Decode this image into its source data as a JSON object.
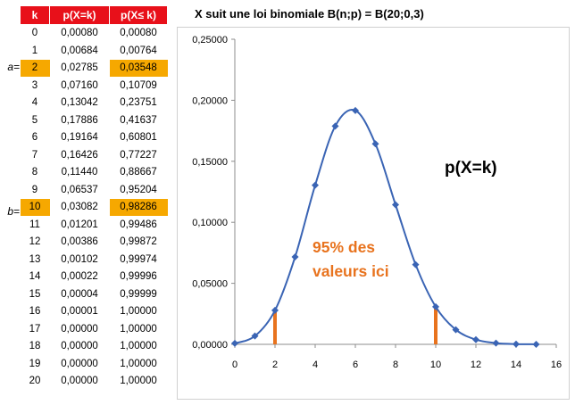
{
  "table": {
    "headers": [
      "k",
      "p(X=k)",
      "p(X≤ k)"
    ],
    "rows": [
      [
        "0",
        "0,00080",
        "0,00080"
      ],
      [
        "1",
        "0,00684",
        "0,00764"
      ],
      [
        "2",
        "0,02785",
        "0,03548"
      ],
      [
        "3",
        "0,07160",
        "0,10709"
      ],
      [
        "4",
        "0,13042",
        "0,23751"
      ],
      [
        "5",
        "0,17886",
        "0,41637"
      ],
      [
        "6",
        "0,19164",
        "0,60801"
      ],
      [
        "7",
        "0,16426",
        "0,77227"
      ],
      [
        "8",
        "0,11440",
        "0,88667"
      ],
      [
        "9",
        "0,06537",
        "0,95204"
      ],
      [
        "10",
        "0,03082",
        "0,98286"
      ],
      [
        "11",
        "0,01201",
        "0,99486"
      ],
      [
        "12",
        "0,00386",
        "0,99872"
      ],
      [
        "13",
        "0,00102",
        "0,99974"
      ],
      [
        "14",
        "0,00022",
        "0,99996"
      ],
      [
        "15",
        "0,00004",
        "0,99999"
      ],
      [
        "16",
        "0,00001",
        "1,00000"
      ],
      [
        "17",
        "0,00000",
        "1,00000"
      ],
      [
        "18",
        "0,00000",
        "1,00000"
      ],
      [
        "19",
        "0,00000",
        "1,00000"
      ],
      [
        "20",
        "0,00000",
        "1,00000"
      ]
    ],
    "highlight_rows": [
      2,
      10
    ],
    "highlight_color": "#f6a800",
    "header_color": "#e8101a",
    "row_labels": {
      "a": "a=",
      "b": "b="
    }
  },
  "chart_data": {
    "type": "scatter",
    "title": "X suit une loi binomiale B(n;p) = B(20;0,3)",
    "series": [
      {
        "name": "p(X=k)",
        "x": [
          0,
          1,
          2,
          3,
          4,
          5,
          6,
          7,
          8,
          9,
          10,
          11,
          12,
          13,
          14,
          15
        ],
        "y": [
          0.0008,
          0.00684,
          0.02785,
          0.0716,
          0.13042,
          0.17886,
          0.19164,
          0.16426,
          0.1144,
          0.06537,
          0.03082,
          0.01201,
          0.00386,
          0.00102,
          0.00022,
          4e-05
        ],
        "smooth": true,
        "color": "#3a64b4"
      }
    ],
    "xlim": [
      0,
      16
    ],
    "ylim": [
      0,
      0.25
    ],
    "x_ticks": [
      0,
      2,
      4,
      6,
      8,
      10,
      12,
      14,
      16
    ],
    "y_tick_labels": [
      "0,00000",
      "0,05000",
      "0,10000",
      "0,15000",
      "0,20000",
      "0,25000"
    ],
    "y_ticks": [
      0,
      0.05,
      0.1,
      0.15,
      0.2,
      0.25
    ],
    "grid": false,
    "markers": [
      {
        "x": 2,
        "y": 0.02785
      },
      {
        "x": 10,
        "y": 0.03082
      }
    ],
    "marker_color": "#e8731e",
    "annotation": "95% des\nvaleurs ici",
    "annotation_color": "#e8731e"
  }
}
